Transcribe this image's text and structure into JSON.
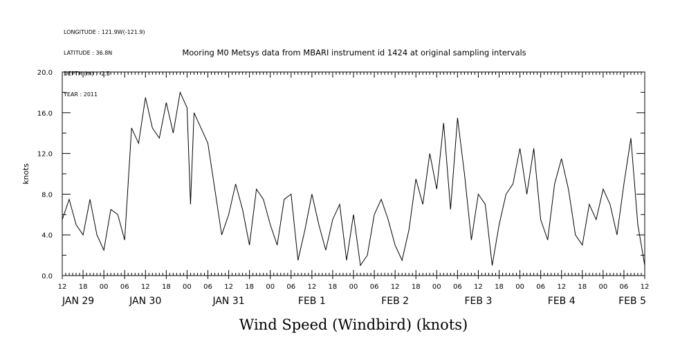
{
  "header": {
    "longitude": "LONGITUDE : 121.9W(-121.9)",
    "latitude": "LATITUDE : 36.8N",
    "depth": "DEPTH (m) : -2.5",
    "year": "YEAR : 2011"
  },
  "chart_data": {
    "type": "line",
    "title": "Mooring M0 Metsys data from MBARI instrument id 1424 at original sampling intervals",
    "xlabel": "Wind Speed (Windbird) (knots)",
    "ylabel": "knots",
    "ylim": [
      0,
      20
    ],
    "xlim_hours": [
      0,
      168
    ],
    "y_ticks": [
      "0.0",
      "4.0",
      "8.0",
      "12.0",
      "16.0",
      "20.0"
    ],
    "x_hour_ticks": [
      "12",
      "18",
      "00",
      "06",
      "12",
      "18",
      "00",
      "06",
      "12",
      "18",
      "00",
      "06",
      "12",
      "18",
      "00",
      "06",
      "12",
      "18",
      "00",
      "06",
      "12",
      "18",
      "00",
      "06",
      "12",
      "18",
      "00",
      "06",
      "12"
    ],
    "x_day_labels": [
      "JAN 29",
      "JAN 30",
      "JAN 31",
      "FEB  1",
      "FEB  2",
      "FEB  3",
      "FEB  4",
      "FEB  5"
    ],
    "grid": false,
    "series": [
      {
        "color": "#000000",
        "x": [
          0,
          2,
          4,
          6,
          8,
          10,
          12,
          14,
          16,
          18,
          20,
          22,
          24,
          26,
          28,
          30,
          32,
          34,
          36,
          37,
          38,
          40,
          42,
          44,
          46,
          48,
          50,
          52,
          54,
          56,
          58,
          60,
          62,
          64,
          66,
          68,
          70,
          72,
          74,
          76,
          78,
          80,
          82,
          84,
          86,
          88,
          90,
          92,
          94,
          96,
          98,
          100,
          102,
          104,
          106,
          108,
          110,
          112,
          114,
          116,
          118,
          120,
          122,
          124,
          126,
          128,
          130,
          132,
          134,
          136,
          138,
          140,
          142,
          144,
          146,
          148,
          150,
          152,
          154,
          156,
          158,
          160,
          162,
          164,
          166,
          168
        ],
        "y": [
          5.5,
          7.5,
          5.0,
          4.0,
          7.5,
          4.0,
          2.5,
          6.5,
          6.0,
          3.5,
          14.5,
          13.0,
          17.5,
          14.5,
          13.5,
          17.0,
          14.0,
          18.0,
          16.5,
          7.0,
          16.0,
          14.5,
          13.0,
          8.5,
          4.0,
          6.0,
          9.0,
          6.5,
          3.0,
          8.5,
          7.5,
          5.0,
          3.0,
          7.5,
          8.0,
          1.5,
          4.5,
          8.0,
          5.0,
          2.5,
          5.5,
          7.0,
          1.5,
          6.0,
          1.0,
          2.0,
          6.0,
          7.5,
          5.5,
          3.0,
          1.5,
          4.5,
          9.5,
          7.0,
          12.0,
          8.5,
          15.0,
          6.5,
          15.5,
          10.0,
          3.5,
          8.0,
          7.0,
          1.0,
          5.0,
          8.0,
          9.0,
          12.5,
          8.0,
          12.5,
          5.5,
          3.5,
          9.0,
          11.5,
          8.5,
          4.0,
          3.0,
          7.0,
          5.5,
          8.5,
          7.0,
          4.0,
          9.0,
          13.5,
          5.0,
          1.0
        ]
      }
    ]
  }
}
